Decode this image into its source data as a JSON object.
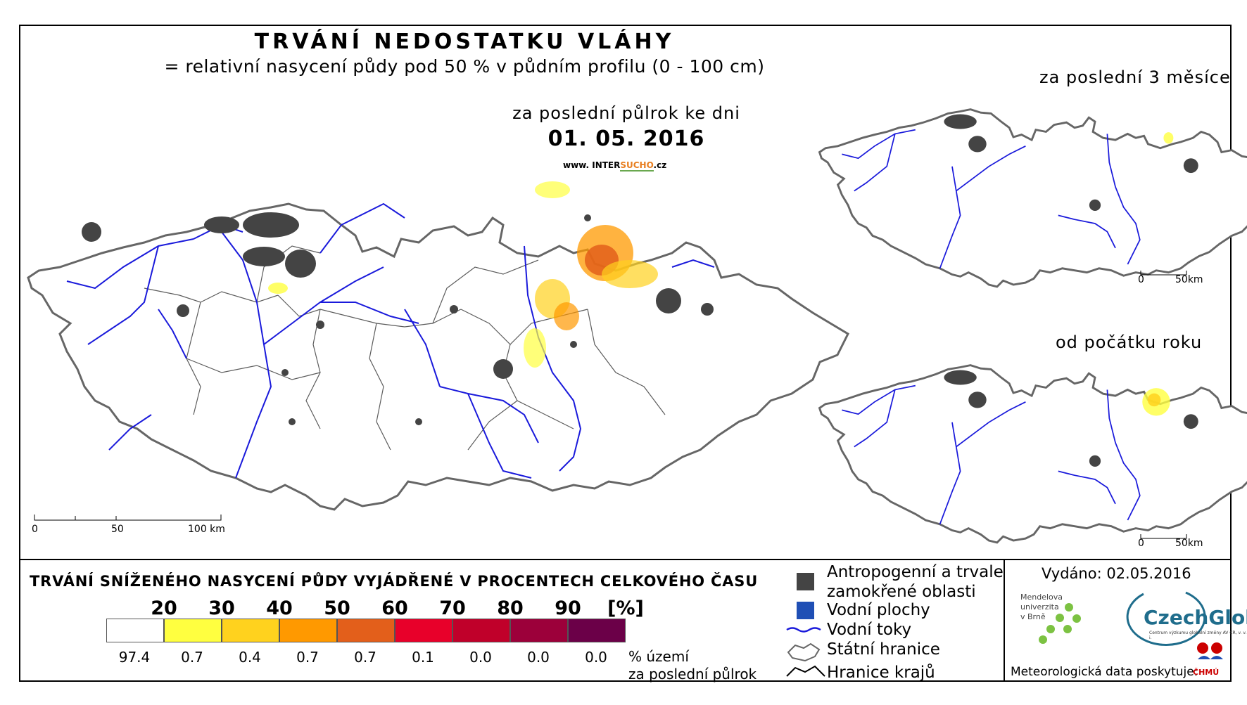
{
  "title": "TRVÁNÍ NEDOSTATKU VLÁHY",
  "subtitle": "= relativní nasycení půdy pod 50 % v půdním profilu (0 - 100 cm)",
  "period_label": "za poslední půlrok ke dni",
  "date": "01. 05. 2016",
  "website": {
    "prefix": "www. INTER",
    "highlight": "SUCHO",
    "suffix": ".cz"
  },
  "insets": [
    {
      "label": "za poslední 3 měsíce"
    },
    {
      "label": "od počátku roku"
    }
  ],
  "main_scale": {
    "ticks": [
      "0",
      "50",
      "100 km"
    ]
  },
  "inset_scale": {
    "ticks": [
      "0",
      "50km"
    ]
  },
  "legend": {
    "title": "TRVÁNÍ SNÍŽENÉHO NASYCENÍ PŮDY VYJÁDŘENÉ V PROCENTECH CELKOVÉHO ČASU",
    "thresholds": [
      "20",
      "30",
      "40",
      "50",
      "60",
      "70",
      "80",
      "90",
      "[%]"
    ],
    "classes": [
      {
        "color": "#ffffff",
        "share": "97.4"
      },
      {
        "color": "#ffff40",
        "share": "0.7"
      },
      {
        "color": "#ffd21e",
        "share": "0.4"
      },
      {
        "color": "#ff9900",
        "share": "0.7"
      },
      {
        "color": "#e35f1b",
        "share": "0.7"
      },
      {
        "color": "#e8002a",
        "share": "0.1"
      },
      {
        "color": "#c0002a",
        "share": "0.0"
      },
      {
        "color": "#9c003a",
        "share": "0.0"
      },
      {
        "color": "#6b0048",
        "share": "0.0"
      }
    ],
    "share_unit_line1": "% území",
    "share_unit_line2": "za poslední půlrok"
  },
  "map_key": {
    "anthropogenic_line1": "Antropogenní a trvale",
    "anthropogenic_line2": "zamokřené oblasti",
    "water_bodies": "Vodní plochy",
    "rivers": "Vodní toky",
    "state_border": "Státní hranice",
    "region_border": "Hranice krajů"
  },
  "colors": {
    "river": "#1a1adb",
    "urban": "#444444",
    "water": "#1f4fb5",
    "border": "#666666"
  },
  "issued": "Vydáno: 02.05.2016",
  "mendel": [
    "Mendelova",
    "univerzita",
    "v Brně"
  ],
  "czechglobe": "CzechGlobe",
  "czechglobe_sub": "Centrum výzkumu globální změny AV ČR, v. v. i.",
  "meteo_credit": "Meteorologická data poskytuje:",
  "chmu": "ČHMÚ"
}
